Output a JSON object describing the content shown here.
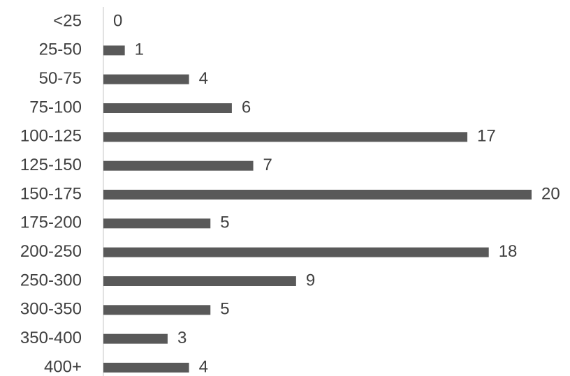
{
  "chart_data": {
    "type": "bar",
    "orientation": "horizontal",
    "categories": [
      "<25",
      "25-50",
      "50-75",
      "75-100",
      "100-125",
      "125-150",
      "150-175",
      "175-200",
      "200-250",
      "250-300",
      "300-350",
      "350-400",
      "400+"
    ],
    "values": [
      0,
      1,
      4,
      6,
      17,
      7,
      20,
      5,
      18,
      9,
      5,
      3,
      4
    ],
    "color": "#595959"
  }
}
